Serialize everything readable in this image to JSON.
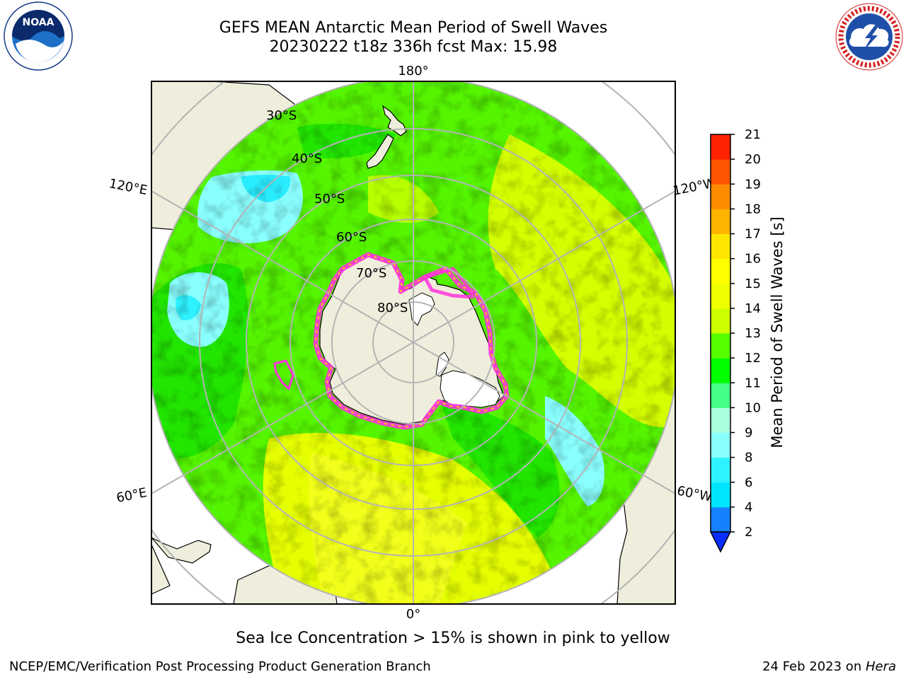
{
  "title": {
    "line1": "GEFS MEAN Antarctic Mean Period of Swell Waves",
    "line2": "20230222 t18z 336h fcst   Max: 15.98"
  },
  "logos": {
    "noaa_text": "NOAA",
    "nws_text": "NATIONAL WEATHER SERVICE",
    "noaa_ring_text": "NATIONAL OCEANIC AND ATMOSPHERIC ADMINISTRATION · U.S. DEPARTMENT OF COMMERCE"
  },
  "map": {
    "projection": "south-polar-stereographic",
    "longitude_labels": [
      "180°",
      "120°E",
      "120°W",
      "60°E",
      "60°W",
      "0°"
    ],
    "latitude_labels": [
      "30°S",
      "40°S",
      "50°S",
      "60°S",
      "70°S",
      "80°S"
    ],
    "colors": {
      "land": "#efeedc",
      "sea_ice_edge": "#ff33dd",
      "grid": "#b4b4b4"
    }
  },
  "colorbar": {
    "label": "Mean Period of Swell Waves [s]",
    "ticks": [
      "2",
      "4",
      "6",
      "8",
      "9",
      "10",
      "11",
      "12",
      "13",
      "14",
      "15",
      "16",
      "17",
      "18",
      "19",
      "20",
      "21"
    ],
    "colors": [
      "#0a2dff",
      "#1680ff",
      "#00e5ff",
      "#2ef2ff",
      "#8affff",
      "#aaffdd",
      "#44ff88",
      "#00ff00",
      "#55ff00",
      "#ccff00",
      "#eeff00",
      "#ffff00",
      "#ffe600",
      "#ffb400",
      "#ff8c00",
      "#ff5500",
      "#ff2200",
      "#ff0000"
    ],
    "extend": "min"
  },
  "note": "Sea Ice Concentration > 15% is shown in pink to yellow",
  "footer": {
    "left": "NCEP/EMC/Verification Post Processing Product Generation Branch",
    "right_prefix": "24 Feb 2023 on ",
    "right_host": "Hera"
  }
}
